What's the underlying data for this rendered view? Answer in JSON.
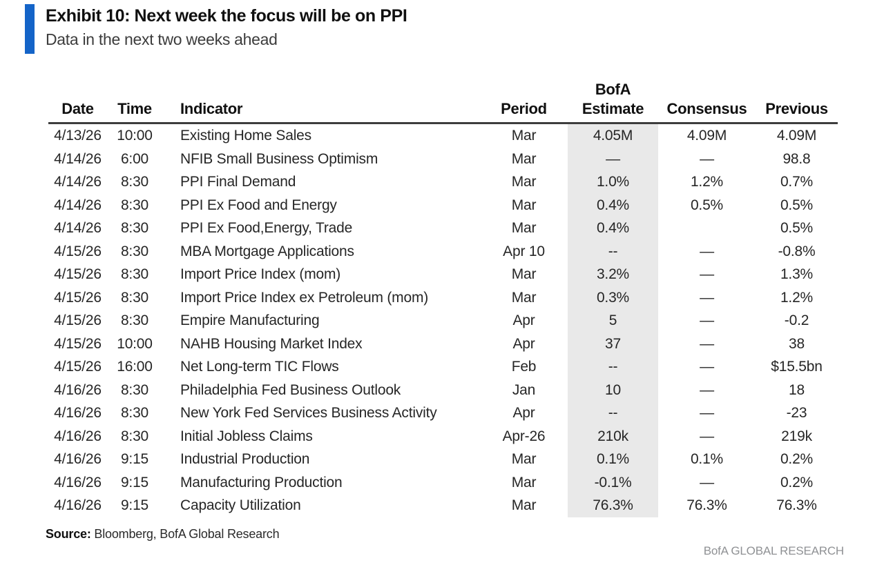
{
  "exhibit": {
    "title": "Exhibit 10: Next week the focus will be on PPI",
    "subtitle": "Data in the next two weeks ahead",
    "accent_color": "#1464c8"
  },
  "table": {
    "columns": [
      "Date",
      "Time",
      "Indicator",
      "Period",
      "BofA\nEstimate",
      "Consensus",
      "Previous"
    ],
    "estimate_band_color": "#e9e9e9",
    "rows": [
      [
        "4/13/26",
        "10:00",
        "Existing Home Sales",
        "Mar",
        "4.05M",
        "4.09M",
        "4.09M"
      ],
      [
        "4/14/26",
        "6:00",
        "NFIB Small Business Optimism",
        "Mar",
        "—",
        "—",
        "98.8"
      ],
      [
        "4/14/26",
        "8:30",
        "PPI Final Demand",
        "Mar",
        "1.0%",
        "1.2%",
        "0.7%"
      ],
      [
        "4/14/26",
        "8:30",
        "PPI Ex Food and Energy",
        "Mar",
        "0.4%",
        "0.5%",
        "0.5%"
      ],
      [
        "4/14/26",
        "8:30",
        "PPI Ex Food,Energy, Trade",
        "Mar",
        "0.4%",
        "",
        "0.5%"
      ],
      [
        "4/15/26",
        "8:30",
        "MBA Mortgage Applications",
        "Apr 10",
        "--",
        "—",
        "-0.8%"
      ],
      [
        "4/15/26",
        "8:30",
        "Import Price Index (mom)",
        "Mar",
        "3.2%",
        "—",
        "1.3%"
      ],
      [
        "4/15/26",
        "8:30",
        "Import Price Index ex Petroleum (mom)",
        "Mar",
        "0.3%",
        "—",
        "1.2%"
      ],
      [
        "4/15/26",
        "8:30",
        "Empire Manufacturing",
        "Apr",
        "5",
        "—",
        "-0.2"
      ],
      [
        "4/15/26",
        "10:00",
        "NAHB Housing Market Index",
        "Apr",
        "37",
        "—",
        "38"
      ],
      [
        "4/15/26",
        "16:00",
        "Net Long-term TIC Flows",
        "Feb",
        "--",
        "—",
        "$15.5bn"
      ],
      [
        "4/16/26",
        "8:30",
        "Philadelphia Fed Business Outlook",
        "Jan",
        "10",
        "—",
        "18"
      ],
      [
        "4/16/26",
        "8:30",
        "New York Fed Services Business Activity",
        "Apr",
        "--",
        "—",
        "-23"
      ],
      [
        "4/16/26",
        "8:30",
        "Initial Jobless Claims",
        "Apr-26",
        "210k",
        "—",
        "219k"
      ],
      [
        "4/16/26",
        "9:15",
        "Industrial Production",
        "Mar",
        "0.1%",
        "0.1%",
        "0.2%"
      ],
      [
        "4/16/26",
        "9:15",
        "Manufacturing Production",
        "Mar",
        "-0.1%",
        "—",
        "0.2%"
      ],
      [
        "4/16/26",
        "9:15",
        "Capacity Utilization",
        "Mar",
        "76.3%",
        "76.3%",
        "76.3%"
      ]
    ]
  },
  "footer": {
    "source_label": "Source:",
    "source_text": " Bloomberg, BofA Global Research",
    "brand": "BofA GLOBAL RESEARCH"
  }
}
